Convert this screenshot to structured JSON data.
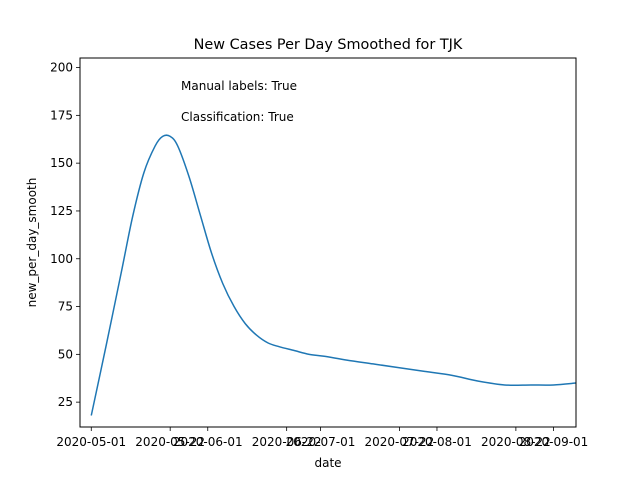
{
  "chart_data": {
    "type": "line",
    "title": "New Cases Per Day Smoothed for TJK",
    "xlabel": "date",
    "ylabel": "new_per_day_smooth",
    "xlim": [
      "2020-04-28",
      "2020-09-07"
    ],
    "ylim": [
      12,
      205
    ],
    "x_ticks": [
      "2020-05-01",
      "2020-05-22",
      "2020-06-01",
      "2020-06-22",
      "2020-07-01",
      "2020-07-22",
      "2020-08-01",
      "2020-08-22",
      "2020-09-01"
    ],
    "y_ticks": [
      25,
      50,
      75,
      100,
      125,
      150,
      175,
      200
    ],
    "grid": false,
    "color": "#1f77b4",
    "annotations": [
      "Manual labels: True",
      "Classification: True"
    ],
    "series": [
      {
        "x": [
          "2020-05-01",
          "2020-05-05",
          "2020-05-09",
          "2020-05-12",
          "2020-05-15",
          "2020-05-18",
          "2020-05-20",
          "2020-05-22",
          "2020-05-24",
          "2020-05-27",
          "2020-05-30",
          "2020-06-02",
          "2020-06-05",
          "2020-06-08",
          "2020-06-11",
          "2020-06-14",
          "2020-06-17",
          "2020-06-20",
          "2020-06-24",
          "2020-06-28",
          "2020-07-02",
          "2020-07-08",
          "2020-07-15",
          "2020-07-22",
          "2020-07-29",
          "2020-08-05",
          "2020-08-12",
          "2020-08-19",
          "2020-08-26",
          "2020-09-01",
          "2020-09-07"
        ],
        "y": [
          18,
          55,
          93,
          122,
          145,
          159,
          164,
          164,
          159,
          143,
          123,
          103,
          87,
          75,
          66,
          60,
          56,
          54,
          52,
          50,
          49,
          47,
          45,
          43,
          41,
          39,
          36,
          34,
          34,
          34,
          35
        ]
      }
    ]
  }
}
